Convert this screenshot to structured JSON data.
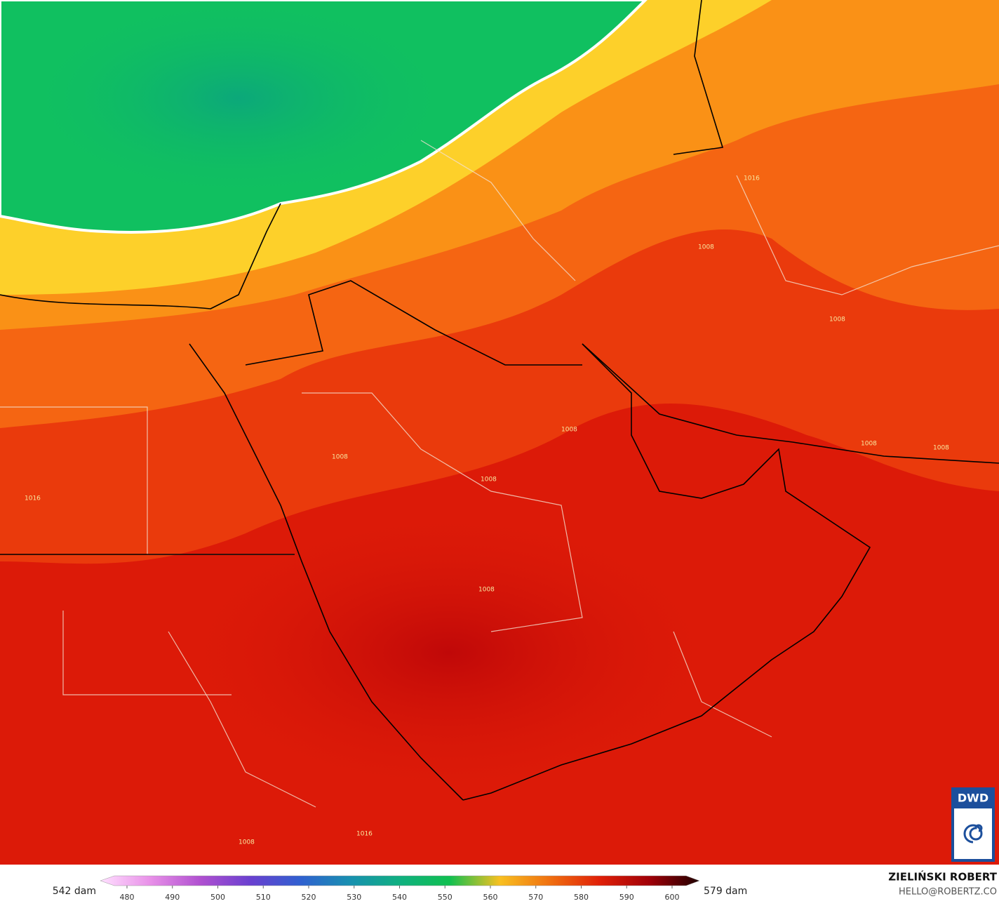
{
  "map": {
    "contour_labels": [
      "1008",
      "1008",
      "1008",
      "1008",
      "1008",
      "1008",
      "1008",
      "1016",
      "1016",
      "1016",
      "1008",
      "1008"
    ],
    "colorbar": {
      "min_label": "542 dam",
      "max_label": "579 dam",
      "ticks": [
        480,
        490,
        500,
        510,
        520,
        530,
        540,
        550,
        560,
        570,
        580,
        590,
        600
      ],
      "colors": [
        "#ffe0ff",
        "#e890e8",
        "#b050d0",
        "#6a40d0",
        "#3060d0",
        "#1890b0",
        "#10b080",
        "#10c050",
        "#f8c020",
        "#f07010",
        "#e02008",
        "#a00008",
        "#200000"
      ]
    },
    "credit": {
      "name": "ZIELIŃSKI ROBERT",
      "email": "HELLO@ROBERTZ.CO"
    },
    "logo": "DWD"
  }
}
